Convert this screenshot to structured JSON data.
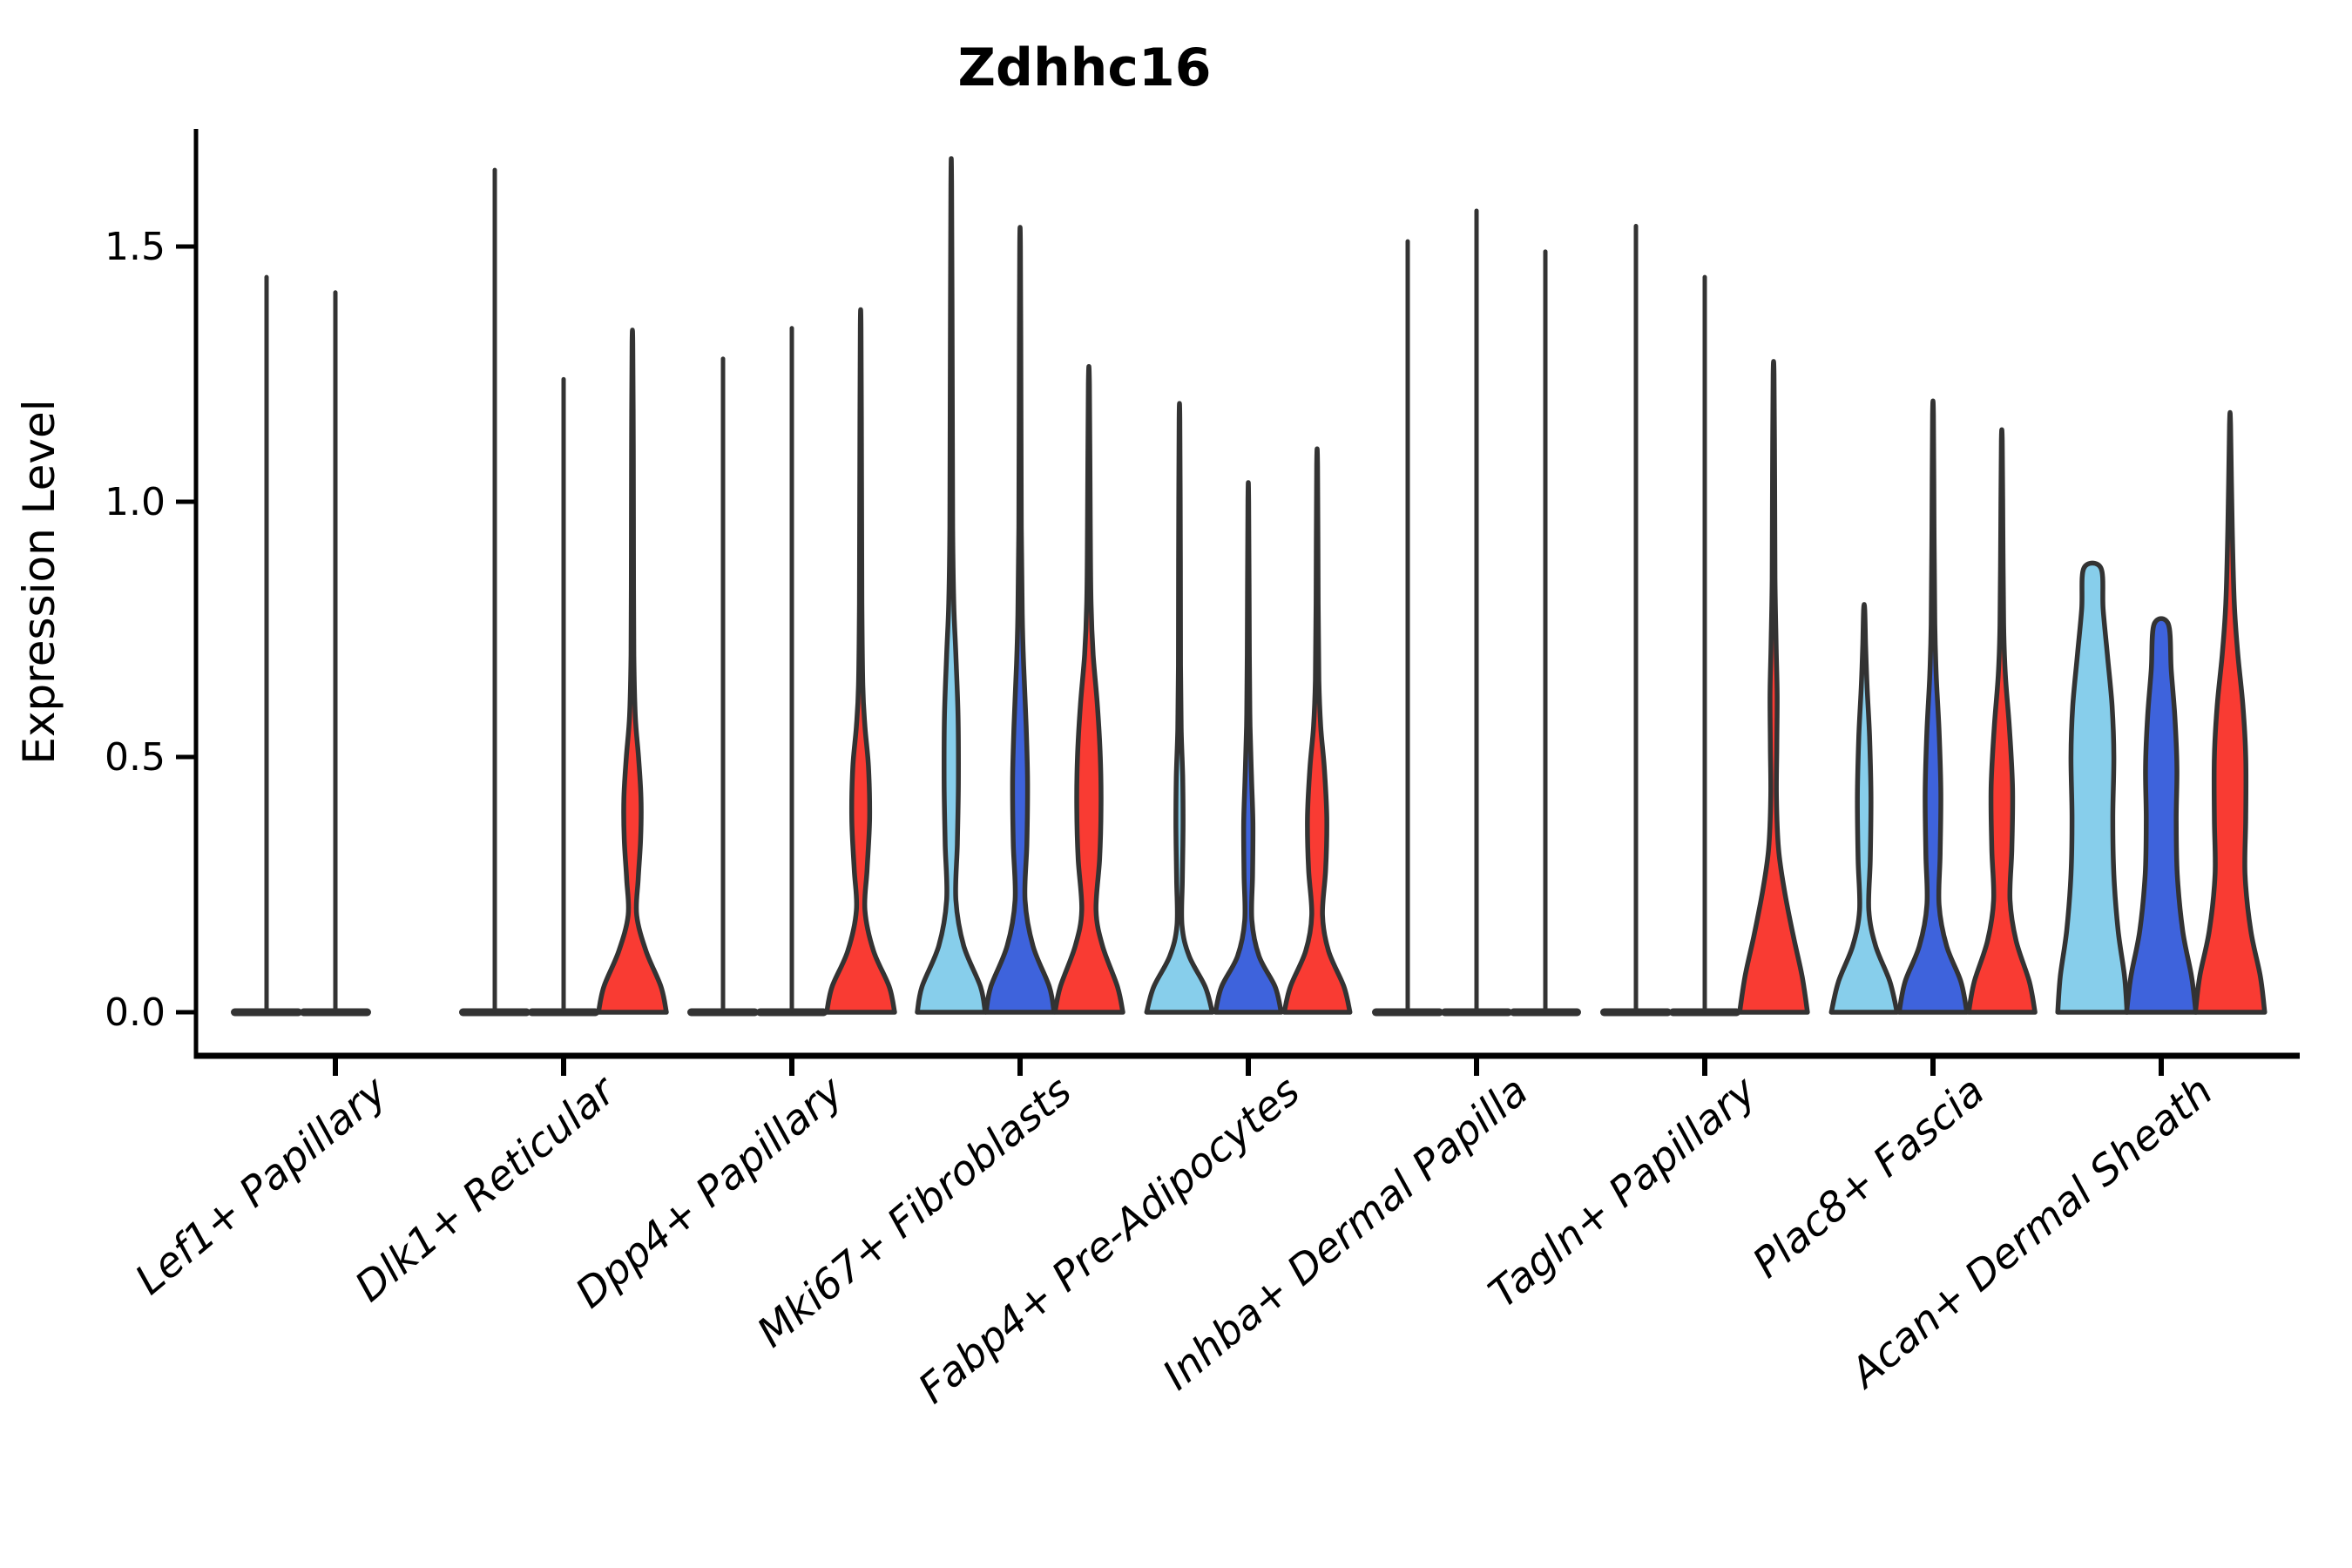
{
  "chart_data": {
    "type": "violin",
    "title": "Zdhhc16",
    "ylabel": "Expression Level",
    "xlabel": "",
    "yticks": [
      0.0,
      0.5,
      1.0,
      1.5
    ],
    "ylim": [
      -0.085,
      1.73
    ],
    "grid": false,
    "legend": "none",
    "outline_color": "#333333",
    "background_color": "#ffffff",
    "series_colors": {
      "skyblue": "#87CEEB",
      "royalblue": "#3E63DC",
      "red": "#F93B33"
    },
    "categories": [
      "Lef1+ Papillary",
      "Dlk1+ Reticular",
      "Dpp4+ Papillary",
      "Mki67+ Fibroblasts",
      "Fabp4+ Pre-Adipocytes",
      "Inhba+ Dermal Papilla",
      "Tagln+ Papillary",
      "Plac8+ Fascia",
      "Acan+ Dermal Sheath"
    ],
    "groups": [
      {
        "category": "Lef1+ Papillary",
        "violins": [
          {
            "series": "skyblue",
            "shape": "spike",
            "max": 1.44
          },
          {
            "series": "royalblue",
            "shape": "spike",
            "max": 1.41
          },
          {
            "series": "red",
            "shape": "none",
            "max": null
          }
        ]
      },
      {
        "category": "Dlk1+ Reticular",
        "violins": [
          {
            "series": "skyblue",
            "shape": "spike",
            "max": 1.65
          },
          {
            "series": "royalblue",
            "shape": "spike",
            "max": 1.24
          },
          {
            "series": "red",
            "shape": "body",
            "max": 1.31,
            "profile": [
              [
                0,
                0.95
              ],
              [
                0.05,
                0.8
              ],
              [
                0.12,
                0.38
              ],
              [
                0.19,
                0.12
              ],
              [
                0.26,
                0.16
              ],
              [
                0.34,
                0.23
              ],
              [
                0.42,
                0.24
              ],
              [
                0.5,
                0.17
              ],
              [
                0.58,
                0.08
              ],
              [
                0.7,
                0.04
              ],
              [
                0.9,
                0.03
              ],
              [
                1.1,
                0.025
              ],
              [
                1.31,
                0.01
              ]
            ]
          }
        ]
      },
      {
        "category": "Dpp4+ Papillary",
        "violins": [
          {
            "series": "skyblue",
            "shape": "spike",
            "max": 1.28
          },
          {
            "series": "royalblue",
            "shape": "spike",
            "max": 1.34
          },
          {
            "series": "red",
            "shape": "body",
            "max": 1.34,
            "profile": [
              [
                0,
                0.95
              ],
              [
                0.05,
                0.8
              ],
              [
                0.12,
                0.36
              ],
              [
                0.2,
                0.12
              ],
              [
                0.28,
                0.18
              ],
              [
                0.38,
                0.25
              ],
              [
                0.48,
                0.22
              ],
              [
                0.56,
                0.12
              ],
              [
                0.64,
                0.06
              ],
              [
                0.8,
                0.035
              ],
              [
                1.05,
                0.025
              ],
              [
                1.34,
                0.01
              ]
            ]
          }
        ]
      },
      {
        "category": "Mki67+ Fibroblasts",
        "violins": [
          {
            "series": "skyblue",
            "shape": "body",
            "max": 1.62,
            "profile": [
              [
                0,
                0.95
              ],
              [
                0.05,
                0.82
              ],
              [
                0.13,
                0.35
              ],
              [
                0.22,
                0.13
              ],
              [
                0.33,
                0.17
              ],
              [
                0.45,
                0.2
              ],
              [
                0.58,
                0.19
              ],
              [
                0.7,
                0.13
              ],
              [
                0.8,
                0.07
              ],
              [
                0.95,
                0.04
              ],
              [
                1.2,
                0.03
              ],
              [
                1.62,
                0.01
              ]
            ]
          },
          {
            "series": "royalblue",
            "shape": "body",
            "max": 1.5,
            "profile": [
              [
                0,
                0.95
              ],
              [
                0.05,
                0.82
              ],
              [
                0.13,
                0.36
              ],
              [
                0.22,
                0.14
              ],
              [
                0.33,
                0.19
              ],
              [
                0.45,
                0.21
              ],
              [
                0.56,
                0.17
              ],
              [
                0.68,
                0.1
              ],
              [
                0.78,
                0.06
              ],
              [
                0.95,
                0.035
              ],
              [
                1.2,
                0.025
              ],
              [
                1.5,
                0.01
              ]
            ]
          },
          {
            "series": "red",
            "shape": "body",
            "max": 1.23,
            "profile": [
              [
                0,
                0.95
              ],
              [
                0.05,
                0.8
              ],
              [
                0.13,
                0.38
              ],
              [
                0.2,
                0.2
              ],
              [
                0.3,
                0.3
              ],
              [
                0.4,
                0.34
              ],
              [
                0.5,
                0.32
              ],
              [
                0.6,
                0.24
              ],
              [
                0.7,
                0.12
              ],
              [
                0.8,
                0.06
              ],
              [
                0.95,
                0.04
              ],
              [
                1.23,
                0.015
              ]
            ]
          }
        ]
      },
      {
        "category": "Fabp4+ Pre-Adipocytes",
        "violins": [
          {
            "series": "skyblue",
            "shape": "body",
            "max": 1.16,
            "profile": [
              [
                0,
                0.92
              ],
              [
                0.05,
                0.72
              ],
              [
                0.11,
                0.27
              ],
              [
                0.17,
                0.07
              ],
              [
                0.26,
                0.08
              ],
              [
                0.36,
                0.1
              ],
              [
                0.46,
                0.09
              ],
              [
                0.55,
                0.05
              ],
              [
                0.68,
                0.03
              ],
              [
                0.9,
                0.025
              ],
              [
                1.16,
                0.01
              ]
            ]
          },
          {
            "series": "royalblue",
            "shape": "body",
            "max": 1.0,
            "profile": [
              [
                0,
                0.92
              ],
              [
                0.05,
                0.75
              ],
              [
                0.11,
                0.3
              ],
              [
                0.18,
                0.1
              ],
              [
                0.27,
                0.12
              ],
              [
                0.37,
                0.13
              ],
              [
                0.46,
                0.09
              ],
              [
                0.56,
                0.05
              ],
              [
                0.7,
                0.03
              ],
              [
                1.0,
                0.01
              ]
            ]
          },
          {
            "series": "red",
            "shape": "body",
            "max": 1.07,
            "profile": [
              [
                0,
                0.92
              ],
              [
                0.05,
                0.75
              ],
              [
                0.12,
                0.32
              ],
              [
                0.19,
                0.15
              ],
              [
                0.28,
                0.24
              ],
              [
                0.38,
                0.27
              ],
              [
                0.48,
                0.2
              ],
              [
                0.56,
                0.1
              ],
              [
                0.65,
                0.05
              ],
              [
                0.8,
                0.03
              ],
              [
                1.07,
                0.012
              ]
            ]
          }
        ]
      },
      {
        "category": "Inhba+ Dermal Papilla",
        "violins": [
          {
            "series": "skyblue",
            "shape": "spike",
            "max": 1.51
          },
          {
            "series": "royalblue",
            "shape": "spike",
            "max": 1.57
          },
          {
            "series": "red",
            "shape": "spike",
            "max": 1.49
          }
        ]
      },
      {
        "category": "Tagln+ Papillary",
        "violins": [
          {
            "series": "skyblue",
            "shape": "spike",
            "max": 1.54
          },
          {
            "series": "royalblue",
            "shape": "spike",
            "max": 1.44
          },
          {
            "series": "red",
            "shape": "body",
            "max": 1.25,
            "profile": [
              [
                0,
                0.95
              ],
              [
                0.07,
                0.8
              ],
              [
                0.15,
                0.55
              ],
              [
                0.24,
                0.3
              ],
              [
                0.32,
                0.14
              ],
              [
                0.42,
                0.08
              ],
              [
                0.52,
                0.09
              ],
              [
                0.62,
                0.1
              ],
              [
                0.72,
                0.07
              ],
              [
                0.85,
                0.04
              ],
              [
                1.05,
                0.03
              ],
              [
                1.25,
                0.012
              ]
            ]
          }
        ]
      },
      {
        "category": "Plac8+ Fascia",
        "violins": [
          {
            "series": "skyblue",
            "shape": "body",
            "max": 0.79,
            "profile": [
              [
                0,
                0.92
              ],
              [
                0.06,
                0.72
              ],
              [
                0.13,
                0.32
              ],
              [
                0.2,
                0.13
              ],
              [
                0.3,
                0.17
              ],
              [
                0.42,
                0.19
              ],
              [
                0.54,
                0.15
              ],
              [
                0.64,
                0.08
              ],
              [
                0.72,
                0.04
              ],
              [
                0.79,
                0.015
              ]
            ]
          },
          {
            "series": "royalblue",
            "shape": "body",
            "max": 1.17,
            "profile": [
              [
                0,
                0.95
              ],
              [
                0.06,
                0.78
              ],
              [
                0.13,
                0.38
              ],
              [
                0.21,
                0.17
              ],
              [
                0.31,
                0.2
              ],
              [
                0.43,
                0.22
              ],
              [
                0.55,
                0.17
              ],
              [
                0.66,
                0.09
              ],
              [
                0.76,
                0.05
              ],
              [
                0.95,
                0.03
              ],
              [
                1.17,
                0.012
              ]
            ]
          },
          {
            "series": "red",
            "shape": "body",
            "max": 1.12,
            "profile": [
              [
                0,
                0.93
              ],
              [
                0.06,
                0.77
              ],
              [
                0.14,
                0.4
              ],
              [
                0.22,
                0.23
              ],
              [
                0.32,
                0.28
              ],
              [
                0.44,
                0.3
              ],
              [
                0.56,
                0.21
              ],
              [
                0.66,
                0.1
              ],
              [
                0.76,
                0.05
              ],
              [
                0.95,
                0.03
              ],
              [
                1.12,
                0.012
              ]
            ]
          }
        ]
      },
      {
        "category": "Acan+ Dermal Sheath",
        "violins": [
          {
            "series": "skyblue",
            "shape": "body",
            "max": 0.87,
            "truncated_top": true,
            "profile": [
              [
                0,
                0.97
              ],
              [
                0.07,
                0.9
              ],
              [
                0.16,
                0.72
              ],
              [
                0.27,
                0.6
              ],
              [
                0.38,
                0.57
              ],
              [
                0.5,
                0.6
              ],
              [
                0.6,
                0.55
              ],
              [
                0.7,
                0.42
              ],
              [
                0.79,
                0.3
              ],
              [
                0.87,
                0.24
              ]
            ]
          },
          {
            "series": "royalblue",
            "shape": "body",
            "max": 0.76,
            "truncated_top": true,
            "profile": [
              [
                0,
                0.97
              ],
              [
                0.07,
                0.85
              ],
              [
                0.16,
                0.6
              ],
              [
                0.27,
                0.45
              ],
              [
                0.38,
                0.42
              ],
              [
                0.48,
                0.44
              ],
              [
                0.58,
                0.38
              ],
              [
                0.67,
                0.28
              ],
              [
                0.76,
                0.2
              ]
            ]
          },
          {
            "series": "red",
            "shape": "body",
            "max": 1.15,
            "profile": [
              [
                0,
                0.97
              ],
              [
                0.07,
                0.85
              ],
              [
                0.16,
                0.58
              ],
              [
                0.27,
                0.42
              ],
              [
                0.38,
                0.44
              ],
              [
                0.5,
                0.44
              ],
              [
                0.6,
                0.36
              ],
              [
                0.7,
                0.22
              ],
              [
                0.8,
                0.12
              ],
              [
                0.95,
                0.06
              ],
              [
                1.15,
                0.015
              ]
            ]
          }
        ]
      }
    ]
  }
}
